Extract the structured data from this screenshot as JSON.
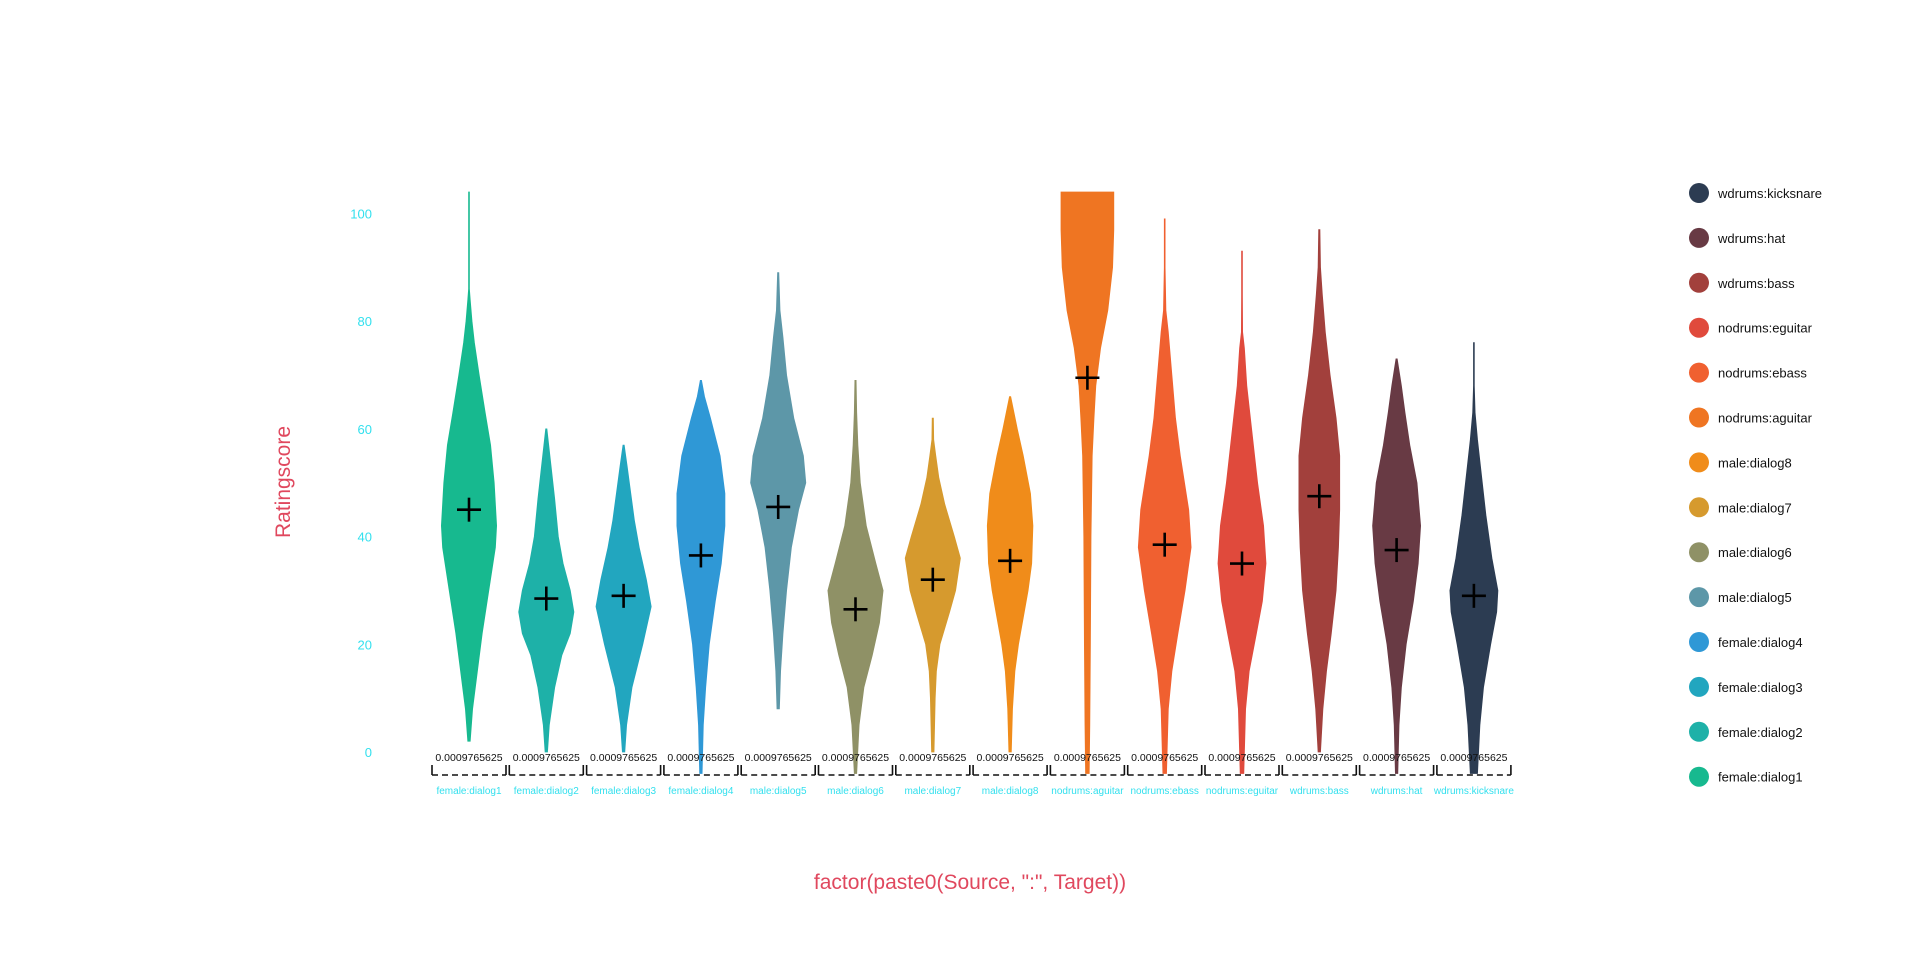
{
  "chart_data": {
    "type": "violin",
    "xlabel": "factor(paste0(Source, \":\", Target))",
    "ylabel": "Ratingscore",
    "ylim": [
      -4,
      104
    ],
    "yticks": [
      0,
      20,
      40,
      60,
      80,
      100
    ],
    "yticks_labels": [
      "0",
      "20",
      "40",
      "60",
      "80",
      "100"
    ],
    "grid": false,
    "legend_position": "right",
    "count_label": "0.0009765625",
    "categories": [
      {
        "name": "female:dialog1",
        "color": "#17b98f",
        "mean": 45,
        "min": 2,
        "max": 104,
        "profile": [
          [
            2,
            0.02
          ],
          [
            8,
            0.06
          ],
          [
            15,
            0.14
          ],
          [
            22,
            0.22
          ],
          [
            30,
            0.33
          ],
          [
            38,
            0.44
          ],
          [
            42,
            0.46
          ],
          [
            50,
            0.42
          ],
          [
            57,
            0.36
          ],
          [
            63,
            0.27
          ],
          [
            70,
            0.17
          ],
          [
            76,
            0.09
          ],
          [
            80,
            0.05
          ],
          [
            84,
            0.02
          ],
          [
            86,
            0.004
          ],
          [
            95,
            0.004
          ],
          [
            104,
            0.004
          ]
        ]
      },
      {
        "name": "female:dialog2",
        "color": "#1eb1a8",
        "mean": 28.5,
        "min": 0,
        "max": 60,
        "profile": [
          [
            0,
            0.02
          ],
          [
            5,
            0.05
          ],
          [
            12,
            0.14
          ],
          [
            18,
            0.26
          ],
          [
            22,
            0.4
          ],
          [
            26,
            0.46
          ],
          [
            30,
            0.4
          ],
          [
            35,
            0.28
          ],
          [
            40,
            0.2
          ],
          [
            47,
            0.14
          ],
          [
            53,
            0.08
          ],
          [
            57,
            0.04
          ],
          [
            60,
            0.01
          ]
        ]
      },
      {
        "name": "female:dialog3",
        "color": "#22a6bf",
        "mean": 29,
        "min": 0,
        "max": 57,
        "profile": [
          [
            0,
            0.02
          ],
          [
            5,
            0.05
          ],
          [
            12,
            0.14
          ],
          [
            20,
            0.32
          ],
          [
            27,
            0.46
          ],
          [
            32,
            0.38
          ],
          [
            38,
            0.26
          ],
          [
            43,
            0.18
          ],
          [
            48,
            0.12
          ],
          [
            53,
            0.06
          ],
          [
            57,
            0.01
          ]
        ]
      },
      {
        "name": "female:dialog4",
        "color": "#2f98d6",
        "mean": 36.5,
        "min": -4,
        "max": 69,
        "profile": [
          [
            -4,
            0.02
          ],
          [
            5,
            0.04
          ],
          [
            12,
            0.08
          ],
          [
            20,
            0.14
          ],
          [
            28,
            0.24
          ],
          [
            35,
            0.34
          ],
          [
            42,
            0.4
          ],
          [
            48,
            0.4
          ],
          [
            55,
            0.32
          ],
          [
            62,
            0.16
          ],
          [
            66,
            0.06
          ],
          [
            69,
            0.01
          ]
        ]
      },
      {
        "name": "male:dialog5",
        "color": "#5d97a8",
        "mean": 45.5,
        "min": 8,
        "max": 89,
        "profile": [
          [
            8,
            0.02
          ],
          [
            15,
            0.04
          ],
          [
            22,
            0.08
          ],
          [
            30,
            0.14
          ],
          [
            38,
            0.22
          ],
          [
            45,
            0.34
          ],
          [
            50,
            0.46
          ],
          [
            55,
            0.42
          ],
          [
            62,
            0.26
          ],
          [
            70,
            0.14
          ],
          [
            77,
            0.08
          ],
          [
            82,
            0.03
          ],
          [
            89,
            0.01
          ]
        ]
      },
      {
        "name": "male:dialog6",
        "color": "#8f9166",
        "mean": 26.5,
        "min": -4,
        "max": 69,
        "profile": [
          [
            -4,
            0.02
          ],
          [
            5,
            0.06
          ],
          [
            12,
            0.14
          ],
          [
            18,
            0.28
          ],
          [
            24,
            0.4
          ],
          [
            30,
            0.46
          ],
          [
            35,
            0.34
          ],
          [
            42,
            0.18
          ],
          [
            50,
            0.08
          ],
          [
            57,
            0.04
          ],
          [
            63,
            0.02
          ],
          [
            69,
            0.01
          ]
        ]
      },
      {
        "name": "male:dialog7",
        "color": "#d69a2e",
        "mean": 32,
        "min": 0,
        "max": 62,
        "profile": [
          [
            0,
            0.02
          ],
          [
            5,
            0.03
          ],
          [
            10,
            0.04
          ],
          [
            15,
            0.06
          ],
          [
            20,
            0.12
          ],
          [
            26,
            0.28
          ],
          [
            30,
            0.38
          ],
          [
            36,
            0.46
          ],
          [
            40,
            0.36
          ],
          [
            46,
            0.2
          ],
          [
            51,
            0.1
          ],
          [
            55,
            0.05
          ],
          [
            58,
            0.015
          ],
          [
            62,
            0.01
          ]
        ]
      },
      {
        "name": "male:dialog8",
        "color": "#f08c1a",
        "mean": 35.5,
        "min": 0,
        "max": 66,
        "profile": [
          [
            0,
            0.02
          ],
          [
            8,
            0.04
          ],
          [
            15,
            0.08
          ],
          [
            20,
            0.14
          ],
          [
            25,
            0.22
          ],
          [
            30,
            0.3
          ],
          [
            35,
            0.36
          ],
          [
            42,
            0.38
          ],
          [
            48,
            0.34
          ],
          [
            55,
            0.22
          ],
          [
            60,
            0.12
          ],
          [
            66,
            0.01
          ]
        ]
      },
      {
        "name": "nodrums:aguitar",
        "color": "#ef7522",
        "mean": 69.5,
        "min": -4,
        "max": 104,
        "profile": [
          [
            -4,
            0.03
          ],
          [
            5,
            0.04
          ],
          [
            20,
            0.05
          ],
          [
            40,
            0.06
          ],
          [
            55,
            0.08
          ],
          [
            62,
            0.11
          ],
          [
            68,
            0.14
          ],
          [
            75,
            0.22
          ],
          [
            82,
            0.34
          ],
          [
            90,
            0.42
          ],
          [
            97,
            0.44
          ],
          [
            104,
            0.44
          ]
        ]
      },
      {
        "name": "nodrums:ebass",
        "color": "#f06030",
        "mean": 38.5,
        "min": -4,
        "max": 99,
        "profile": [
          [
            -4,
            0.03
          ],
          [
            8,
            0.06
          ],
          [
            15,
            0.12
          ],
          [
            22,
            0.22
          ],
          [
            30,
            0.34
          ],
          [
            38,
            0.44
          ],
          [
            45,
            0.4
          ],
          [
            55,
            0.26
          ],
          [
            62,
            0.18
          ],
          [
            70,
            0.12
          ],
          [
            78,
            0.06
          ],
          [
            82,
            0.02
          ],
          [
            90,
            0.005
          ],
          [
            99,
            0.004
          ]
        ]
      },
      {
        "name": "nodrums:eguitar",
        "color": "#e04a3c",
        "mean": 35,
        "min": -4,
        "max": 93,
        "profile": [
          [
            -4,
            0.03
          ],
          [
            8,
            0.06
          ],
          [
            15,
            0.12
          ],
          [
            22,
            0.24
          ],
          [
            28,
            0.34
          ],
          [
            35,
            0.4
          ],
          [
            42,
            0.36
          ],
          [
            50,
            0.26
          ],
          [
            60,
            0.16
          ],
          [
            68,
            0.08
          ],
          [
            75,
            0.04
          ],
          [
            78,
            0.01
          ],
          [
            85,
            0.004
          ],
          [
            93,
            0.004
          ]
        ]
      },
      {
        "name": "wdrums:bass",
        "color": "#a2403c",
        "mean": 47.5,
        "min": 0,
        "max": 97,
        "profile": [
          [
            0,
            0.02
          ],
          [
            8,
            0.06
          ],
          [
            15,
            0.12
          ],
          [
            22,
            0.2
          ],
          [
            30,
            0.28
          ],
          [
            38,
            0.32
          ],
          [
            45,
            0.34
          ],
          [
            55,
            0.34
          ],
          [
            62,
            0.28
          ],
          [
            70,
            0.18
          ],
          [
            78,
            0.1
          ],
          [
            85,
            0.05
          ],
          [
            90,
            0.02
          ],
          [
            97,
            0.01
          ]
        ]
      },
      {
        "name": "wdrums:hat",
        "color": "#683a44",
        "mean": 37.5,
        "min": -4,
        "max": 73,
        "profile": [
          [
            -4,
            0.02
          ],
          [
            5,
            0.04
          ],
          [
            12,
            0.08
          ],
          [
            20,
            0.16
          ],
          [
            28,
            0.28
          ],
          [
            35,
            0.36
          ],
          [
            42,
            0.4
          ],
          [
            50,
            0.34
          ],
          [
            57,
            0.22
          ],
          [
            63,
            0.14
          ],
          [
            68,
            0.08
          ],
          [
            73,
            0.01
          ]
        ]
      },
      {
        "name": "wdrums:kicksnare",
        "color": "#2c3c52",
        "mean": 29,
        "min": -4,
        "max": 76,
        "profile": [
          [
            -4,
            0.06
          ],
          [
            5,
            0.1
          ],
          [
            12,
            0.16
          ],
          [
            20,
            0.28
          ],
          [
            26,
            0.38
          ],
          [
            30,
            0.4
          ],
          [
            36,
            0.3
          ],
          [
            44,
            0.2
          ],
          [
            52,
            0.12
          ],
          [
            58,
            0.06
          ],
          [
            63,
            0.02
          ],
          [
            68,
            0.006
          ],
          [
            76,
            0.004
          ]
        ]
      }
    ],
    "legend": [
      {
        "label": "wdrums:kicksnare",
        "color": "#2c3c52"
      },
      {
        "label": "wdrums:hat",
        "color": "#683a44"
      },
      {
        "label": "wdrums:bass",
        "color": "#a2403c"
      },
      {
        "label": "nodrums:eguitar",
        "color": "#e04a3c"
      },
      {
        "label": "nodrums:ebass",
        "color": "#f06030"
      },
      {
        "label": "nodrums:aguitar",
        "color": "#ef7522"
      },
      {
        "label": "male:dialog8",
        "color": "#f08c1a"
      },
      {
        "label": "male:dialog7",
        "color": "#d69a2e"
      },
      {
        "label": "male:dialog6",
        "color": "#8f9166"
      },
      {
        "label": "male:dialog5",
        "color": "#5d97a8"
      },
      {
        "label": "female:dialog4",
        "color": "#2f98d6"
      },
      {
        "label": "female:dialog3",
        "color": "#22a6bf"
      },
      {
        "label": "female:dialog2",
        "color": "#1eb1a8"
      },
      {
        "label": "female:dialog1",
        "color": "#17b98f"
      }
    ]
  }
}
